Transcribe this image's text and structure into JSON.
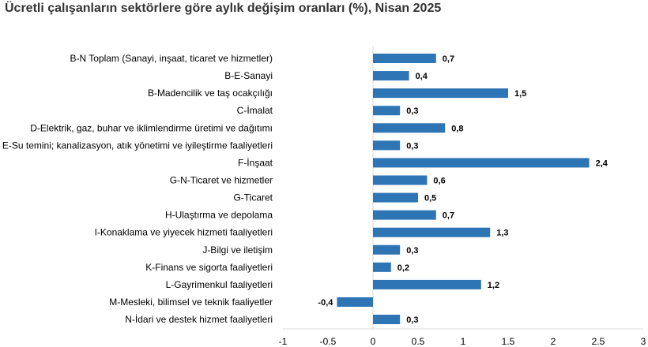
{
  "chart_data": {
    "type": "bar",
    "orientation": "horizontal",
    "title": "Ücretli çalışanların sektörlere göre aylık değişim oranları (%), Nisan 2025",
    "categories": [
      "B-N Toplam (Sanayi, inşaat, ticaret ve hizmetler)",
      "B-E-Sanayi",
      "B-Madencilik ve taş ocakçılığı",
      "C-İmalat",
      "D-Elektrik, gaz, buhar ve iklimlendirme üretimi ve dağıtımı",
      "E-Su temini; kanalizasyon, atık yönetimi ve iyileştirme faaliyetleri",
      "F-İnşaat",
      "G-N-Ticaret ve hizmetler",
      "G-Ticaret",
      "H-Ulaştırma ve depolama",
      "I-Konaklama ve yiyecek hizmeti faaliyetleri",
      "J-Bilgi ve iletişim",
      "K-Finans ve sigorta faaliyetleri",
      "L-Gayrimenkul faaliyetleri",
      "M-Mesleki, bilimsel ve teknik faaliyetler",
      "N-İdari ve destek hizmet faaliyetleri"
    ],
    "values": [
      0.7,
      0.4,
      1.5,
      0.3,
      0.8,
      0.3,
      2.4,
      0.6,
      0.5,
      0.7,
      1.3,
      0.3,
      0.2,
      1.2,
      -0.4,
      0.3
    ],
    "value_labels": [
      "0,7",
      "0,4",
      "1,5",
      "0,3",
      "0,8",
      "0,3",
      "2,4",
      "0,6",
      "0,5",
      "0,7",
      "1,3",
      "0,3",
      "0,2",
      "1,2",
      "-0,4",
      "0,3"
    ],
    "xlim": [
      -1,
      3
    ],
    "xticks": [
      "-1",
      "-0.5",
      "0",
      "0.5",
      "1",
      "1.5",
      "2",
      "2.5",
      "3"
    ],
    "grid": false,
    "bar_color": "#2E75B6"
  }
}
